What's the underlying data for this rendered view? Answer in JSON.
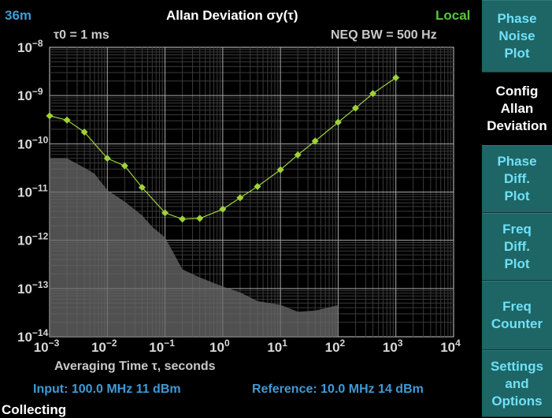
{
  "header": {
    "elapsed": "36m",
    "title": "Allan Deviation σy(τ)",
    "mode": "Local",
    "tau0": "τ0 = 1 ms",
    "neq_bw": "NEQ BW = 500 Hz"
  },
  "footer": {
    "xlabel": "Averaging Time τ, seconds",
    "input": "Input: 100.0 MHz 11 dBm",
    "reference": "Reference: 10.0 MHz 14 dBm",
    "status": "Collecting"
  },
  "softkeys": [
    {
      "lines": [
        "Phase",
        "Noise",
        "Plot"
      ],
      "active": false
    },
    {
      "lines": [
        "Config",
        "Allan",
        "Deviation"
      ],
      "active": true
    },
    {
      "lines": [
        "Phase",
        "Diff.",
        "Plot"
      ],
      "active": false
    },
    {
      "lines": [
        "Freq",
        "Diff.",
        "Plot"
      ],
      "active": false
    },
    {
      "lines": [
        "Freq",
        "Counter"
      ],
      "active": false
    },
    {
      "lines": [
        "Settings",
        "and",
        "Options"
      ],
      "active": false
    }
  ],
  "colors": {
    "accent_blue": "#3f9ad6",
    "local_green": "#5ac53d",
    "trace": "#9ed23a",
    "softkey_bg": "#1e6565",
    "softkey_text": "#6fe0f7"
  },
  "chart_data": {
    "type": "line",
    "x_scale": "log",
    "y_scale": "log",
    "xlim": [
      0.001,
      10000
    ],
    "ylim": [
      1e-14,
      1e-08
    ],
    "x_ticks": [
      {
        "base": "10",
        "exp": "−3"
      },
      {
        "base": "10",
        "exp": "−2"
      },
      {
        "base": "10",
        "exp": "−1"
      },
      {
        "base": "10",
        "exp": "0"
      },
      {
        "base": "10",
        "exp": "1"
      },
      {
        "base": "10",
        "exp": "2"
      },
      {
        "base": "10",
        "exp": "3"
      },
      {
        "base": "10",
        "exp": "4"
      }
    ],
    "y_ticks": [
      {
        "base": "10",
        "exp": "−8"
      },
      {
        "base": "10",
        "exp": "−9"
      },
      {
        "base": "10",
        "exp": "−10"
      },
      {
        "base": "10",
        "exp": "−11"
      },
      {
        "base": "10",
        "exp": "−12"
      },
      {
        "base": "10",
        "exp": "−13"
      },
      {
        "base": "10",
        "exp": "−14"
      }
    ],
    "grid": true,
    "series": [
      {
        "x": [
          0.001,
          0.002,
          0.004,
          0.01,
          0.02,
          0.04,
          0.1,
          0.2,
          0.4,
          1,
          2,
          4,
          10,
          20,
          40,
          100,
          200,
          400,
          1000
        ],
        "y": [
          3.8e-10,
          3.1e-10,
          1.75e-10,
          5e-11,
          3.5e-11,
          1.25e-11,
          3.7e-12,
          2.75e-12,
          2.85e-12,
          4.4e-12,
          7.6e-12,
          1.3e-11,
          2.9e-11,
          5.9e-11,
          1.14e-10,
          2.8e-10,
          5.5e-10,
          1.1e-09,
          2.35e-09
        ]
      }
    ],
    "noise_floor": {
      "x": [
        0.001,
        0.002,
        0.004,
        0.006,
        0.01,
        0.02,
        0.04,
        0.06,
        0.1,
        0.2,
        0.4,
        1,
        2,
        4,
        10,
        20,
        40,
        100
      ],
      "y": [
        5e-11,
        5e-11,
        3.2e-11,
        2.4e-11,
        1.1e-11,
        6.3e-12,
        3.3e-12,
        1.9e-12,
        1.15e-12,
        2.5e-13,
        1.7e-13,
        1.1e-13,
        8.3e-14,
        5.5e-14,
        4.6e-14,
        3.3e-14,
        3.5e-14,
        4.5e-14
      ]
    }
  }
}
